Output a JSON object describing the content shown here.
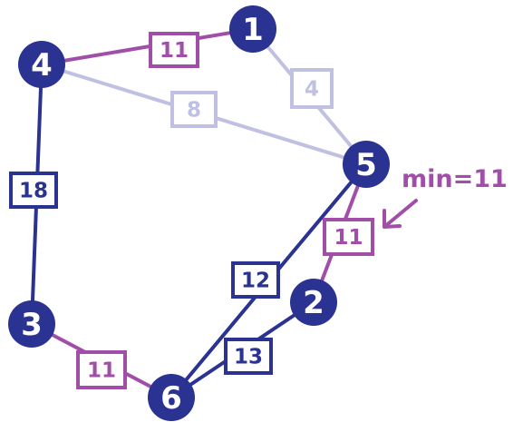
{
  "colors": {
    "node_fill": "#2a3292",
    "node_text": "#ffffff",
    "dark_blue": "#2a3292",
    "purple": "#a04ea8",
    "lavender": "#c0c0e2",
    "background": "#ffffff"
  },
  "nodes": [
    {
      "id": "1",
      "label": "1"
    },
    {
      "id": "2",
      "label": "2"
    },
    {
      "id": "3",
      "label": "3"
    },
    {
      "id": "4",
      "label": "4"
    },
    {
      "id": "5",
      "label": "5"
    },
    {
      "id": "6",
      "label": "6"
    }
  ],
  "edges": [
    {
      "from": "4",
      "to": "1",
      "weight": "11",
      "status": "highlighted"
    },
    {
      "from": "1",
      "to": "5",
      "weight": "4",
      "status": "faded"
    },
    {
      "from": "4",
      "to": "5",
      "weight": "8",
      "status": "faded"
    },
    {
      "from": "4",
      "to": "3",
      "weight": "18",
      "status": "normal"
    },
    {
      "from": "5",
      "to": "6",
      "weight": "12",
      "status": "normal"
    },
    {
      "from": "5",
      "to": "2",
      "weight": "11",
      "status": "highlighted"
    },
    {
      "from": "2",
      "to": "6",
      "weight": "13",
      "status": "normal"
    },
    {
      "from": "3",
      "to": "6",
      "weight": "11",
      "status": "highlighted"
    }
  ],
  "annotation": {
    "text": "min=11",
    "arrow": "arrow pointing to edge 5-2"
  }
}
